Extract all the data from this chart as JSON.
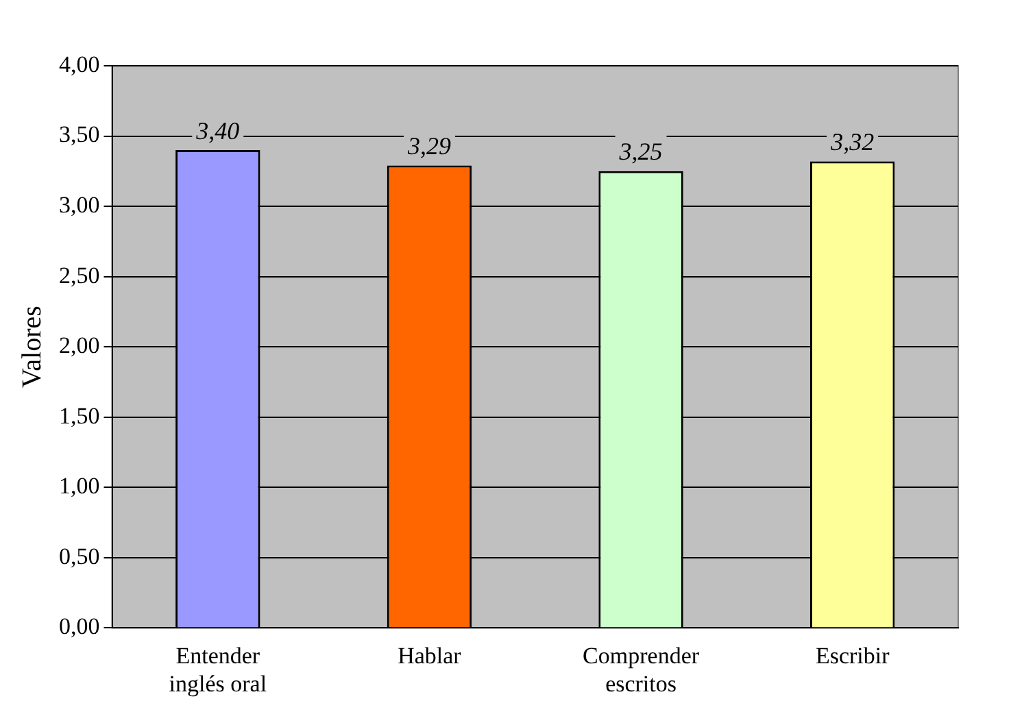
{
  "chart_data": {
    "type": "bar",
    "ylabel": "Valores",
    "categories": [
      "Entender inglés oral",
      "Hablar",
      "Comprender escritos",
      "Escribir"
    ],
    "values": [
      3.4,
      3.29,
      3.25,
      3.32
    ],
    "colors": [
      "#9999ff",
      "#ff6600",
      "#ccffcc",
      "#ffff99"
    ],
    "value_labels": [
      "3,40",
      "3,29",
      "3,25",
      "3,32"
    ],
    "ylim": [
      0,
      4
    ],
    "yticks": [
      {
        "value": 0,
        "label": "0,00"
      },
      {
        "value": 0.5,
        "label": "0,50"
      },
      {
        "value": 1,
        "label": "1,00"
      },
      {
        "value": 1.5,
        "label": "1,50"
      },
      {
        "value": 2,
        "label": "2,00"
      },
      {
        "value": 2.5,
        "label": "2,50"
      },
      {
        "value": 3,
        "label": "3,00"
      },
      {
        "value": 3.5,
        "label": "3,50"
      },
      {
        "value": 4,
        "label": "4,00"
      }
    ],
    "grid": "y",
    "legend": false
  }
}
